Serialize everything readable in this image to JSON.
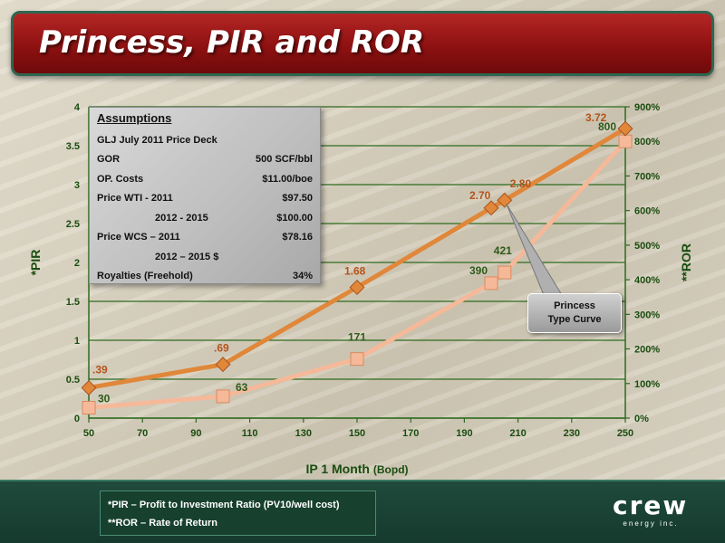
{
  "title": "Princess, PIR and ROR",
  "assumptions": {
    "heading": "Assumptions",
    "rows": [
      {
        "label": "GLJ July 2011 Price Deck",
        "value": ""
      },
      {
        "label": "GOR",
        "value": "500 SCF/bbl"
      },
      {
        "label": "OP. Costs",
        "value": "$11.00/boe"
      },
      {
        "label": "Price WTI - 2011",
        "value": "$97.50"
      },
      {
        "label": "2012 - 2015",
        "value": "$100.00",
        "indent": true
      },
      {
        "label": "Price WCS – 2011",
        "value": "$78.16"
      },
      {
        "label": "2012 – 2015 $",
        "value": "",
        "indent": true
      },
      {
        "label": "Royalties (Freehold)",
        "value": "34%"
      }
    ]
  },
  "callout": {
    "line1": "Princess",
    "line2": "Type Curve"
  },
  "footer": {
    "note1": "*PIR – Profit to Investment Ratio (PV10/well cost)",
    "note2": "**ROR – Rate of Return",
    "logo_word": "crew",
    "logo_sub": "energy inc."
  },
  "colors": {
    "pir": "#e0873a",
    "ror": "#f5b99a",
    "grid": "#2e6b1f",
    "axis_text": "#1a4d10",
    "pir_label": "#b5531b",
    "ror_label": "#2e5a1a"
  },
  "chart_data": {
    "type": "line",
    "xlabel": "IP 1 Month",
    "xlabel_unit": "(Bopd)",
    "ylabel_left": "*PIR",
    "ylabel_right": "**ROR",
    "xlim": [
      50,
      250
    ],
    "x_ticks": [
      50,
      70,
      90,
      110,
      130,
      150,
      170,
      190,
      210,
      230,
      250
    ],
    "ylim_left": [
      0,
      4
    ],
    "y_ticks_left": [
      "0",
      "0.5",
      "1",
      "1.5",
      "2",
      "2.5",
      "3",
      "3.5",
      "4"
    ],
    "ylim_right": [
      0,
      900
    ],
    "y_ticks_right": [
      "0%",
      "100%",
      "200%",
      "300%",
      "400%",
      "500%",
      "600%",
      "700%",
      "800%",
      "900%"
    ],
    "grid": true,
    "series": [
      {
        "name": "*PIR",
        "axis": "left",
        "marker": "diamond",
        "x": [
          50,
          100,
          150,
          200,
          205,
          250
        ],
        "values": [
          0.39,
          0.69,
          1.68,
          2.7,
          2.8,
          3.72
        ],
        "labels": [
          ".39",
          ".69",
          "1.68",
          "2.70",
          "2.80",
          "3.72"
        ]
      },
      {
        "name": "**ROR",
        "axis": "right",
        "marker": "square",
        "x": [
          50,
          100,
          150,
          200,
          205,
          250
        ],
        "values": [
          30,
          63,
          171,
          390,
          421,
          800
        ],
        "labels": [
          "30",
          "63",
          "171",
          "390",
          "421",
          "800"
        ]
      }
    ]
  }
}
